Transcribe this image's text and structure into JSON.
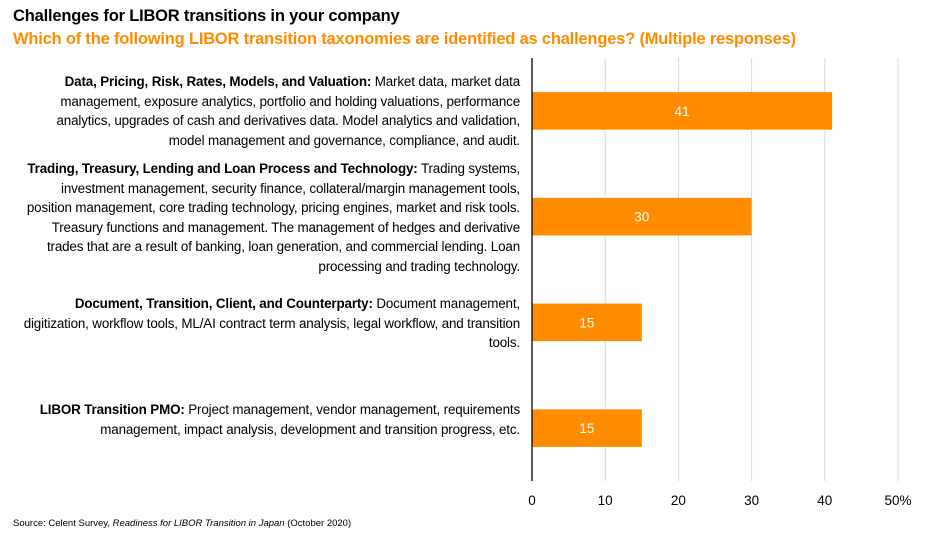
{
  "header": {
    "title": "Challenges for LIBOR transitions in your company",
    "subtitle": "Which of the following LIBOR transition taxonomies are identified as challenges? (Multiple responses)"
  },
  "source": {
    "prefix": "Source: Celent Survey, ",
    "italic": "Readiness for LIBOR Transition in Japan",
    "suffix": " (October 2020)"
  },
  "colors": {
    "bar": "#FF8C00",
    "subtitle": "#FF8C00",
    "gridline": "#D9D9D9",
    "axis": "#000000",
    "bar_label": "#FFFFFF"
  },
  "chart_data": {
    "type": "bar",
    "orientation": "horizontal",
    "title": "Challenges for LIBOR transitions in your company",
    "subtitle": "Which of the following LIBOR transition taxonomies are identified as challenges? (Multiple responses)",
    "xlabel": "",
    "ylabel": "",
    "xlim": [
      0,
      50
    ],
    "x_ticks": [
      0,
      10,
      20,
      30,
      40,
      50
    ],
    "x_tick_labels": [
      "0",
      "10",
      "20",
      "30",
      "40",
      "50%"
    ],
    "grid": "vertical",
    "legend": "none",
    "categories": [
      {
        "bold": "Data, Pricing, Risk, Rates, Models, and Valuation:",
        "text": " Market data, market data management, exposure analytics, portfolio and holding valuations, performance analytics, upgrades of cash and derivatives data. Model analytics and validation, model management and governance, compliance, and audit."
      },
      {
        "bold": "Trading, Treasury, Lending and Loan Process and Technology:",
        "text": " Trading systems, investment management, security finance, collateral/margin management tools, position management, core trading technology, pricing engines, market and risk tools. Treasury functions and management. The management of hedges and derivative trades that are a result of banking, loan generation, and commercial lending. Loan processing and trading technology."
      },
      {
        "bold": "Document, Transition, Client, and Counterparty:",
        "text": " Document management, digitization, workflow tools, ML/AI contract term analysis, legal workflow, and transition tools."
      },
      {
        "bold": "LIBOR Transition PMO:",
        "text": " Project management, vendor management, requirements management, impact analysis, development and transition progress, etc."
      }
    ],
    "values": [
      41,
      30,
      15,
      15
    ],
    "data_labels": [
      "41",
      "30",
      "15",
      "15"
    ],
    "unit": "%"
  }
}
